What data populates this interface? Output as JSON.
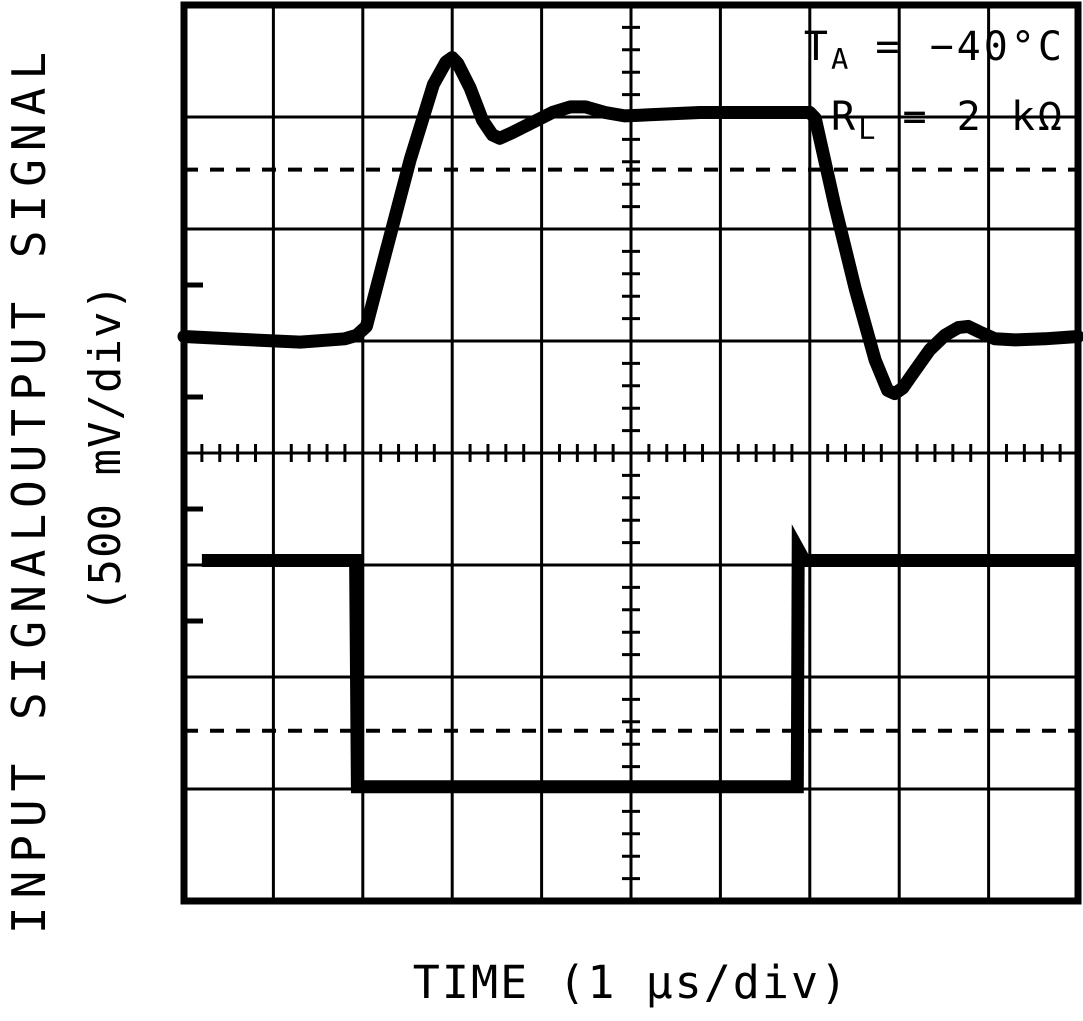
{
  "figure": {
    "left_axis": {
      "top_label": "OUTPUT SIGNAL",
      "bottom_label": "INPUT SIGNAL",
      "scale_label": "(500 mV/div)"
    },
    "x_axis": {
      "label": "TIME (1 µs/div)"
    },
    "annotations": [
      {
        "sym": "T",
        "sub": "A",
        "value": " = −40°C"
      },
      {
        "sym": "R",
        "sub": "L",
        "value": " = 2 kΩ"
      }
    ],
    "colors": {
      "foreground": "#000000",
      "background": "#ffffff"
    }
  },
  "chart_data": {
    "type": "line",
    "x_per_div": "1 µs",
    "y_per_div": "500 mV",
    "x_range_div": [
      0,
      10
    ],
    "y_range_div": [
      -4,
      4
    ],
    "grid": {
      "x_divisions": 10,
      "y_divisions": 8,
      "minor_per_major": 5,
      "edge_half_div_ticks": [
        1.5,
        0.5,
        -0.5,
        -1.5
      ]
    },
    "reference_lines_div": [
      2.53,
      -2.48
    ],
    "series": [
      {
        "name": "output_signal",
        "points_div": [
          [
            0,
            1.04
          ],
          [
            0.5,
            1.02
          ],
          [
            1.3,
            0.99
          ],
          [
            1.8,
            1.02
          ],
          [
            1.93,
            1.05
          ],
          [
            2.04,
            1.13
          ],
          [
            2.25,
            1.77
          ],
          [
            2.53,
            2.62
          ],
          [
            2.79,
            3.29
          ],
          [
            2.93,
            3.49
          ],
          [
            3.0,
            3.53
          ],
          [
            3.06,
            3.48
          ],
          [
            3.2,
            3.26
          ],
          [
            3.34,
            2.97
          ],
          [
            3.45,
            2.84
          ],
          [
            3.53,
            2.81
          ],
          [
            3.67,
            2.86
          ],
          [
            3.87,
            2.94
          ],
          [
            4.12,
            3.04
          ],
          [
            4.32,
            3.09
          ],
          [
            4.49,
            3.09
          ],
          [
            4.71,
            3.04
          ],
          [
            4.93,
            3.01
          ],
          [
            5.21,
            3.02
          ],
          [
            5.77,
            3.04
          ],
          [
            6.44,
            3.04
          ],
          [
            7.0,
            3.04
          ],
          [
            7.06,
            2.99
          ],
          [
            7.28,
            2.21
          ],
          [
            7.51,
            1.46
          ],
          [
            7.73,
            0.83
          ],
          [
            7.87,
            0.56
          ],
          [
            7.95,
            0.53
          ],
          [
            8.04,
            0.58
          ],
          [
            8.18,
            0.74
          ],
          [
            8.34,
            0.92
          ],
          [
            8.51,
            1.05
          ],
          [
            8.66,
            1.12
          ],
          [
            8.77,
            1.13
          ],
          [
            8.9,
            1.08
          ],
          [
            9.07,
            1.02
          ],
          [
            9.29,
            1.01
          ],
          [
            9.63,
            1.02
          ],
          [
            10,
            1.04
          ]
        ]
      },
      {
        "name": "input_signal",
        "points_div": [
          [
            0.2,
            -0.96
          ],
          [
            1.92,
            -0.96
          ],
          [
            1.94,
            -2.98
          ],
          [
            6.86,
            -2.98
          ],
          [
            6.87,
            -0.86
          ],
          [
            6.94,
            -0.96
          ],
          [
            10,
            -0.96
          ]
        ]
      }
    ]
  }
}
